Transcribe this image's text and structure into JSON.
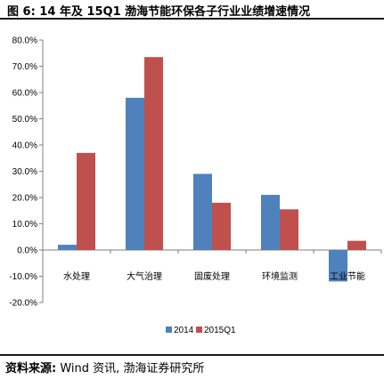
{
  "header": {
    "title": "图 6:  14 年及 15Q1 渤海节能环保各子行业业绩增速情况"
  },
  "footer": {
    "source_label": "资料来源:",
    "source_text": " Wind 资讯, 渤海证券研究所"
  },
  "colors": {
    "series_2014": "#4f81bd",
    "series_2015Q1": "#c0504d"
  },
  "chart_data": {
    "type": "bar",
    "title": "14 年及 15Q1 渤海节能环保各子行业业绩增速情况",
    "categories": [
      "水处理",
      "大气治理",
      "固废处理",
      "环境监测",
      "工业节能"
    ],
    "series": [
      {
        "name": "2014",
        "values": [
          2.0,
          58.0,
          29.0,
          21.0,
          -12.0
        ]
      },
      {
        "name": "2015Q1",
        "values": [
          37.0,
          73.5,
          18.0,
          15.5,
          3.5
        ]
      }
    ],
    "ylim": [
      -20,
      80
    ],
    "yticks": [
      "-20.0%",
      "-10.0%",
      "0.0%",
      "10.0%",
      "20.0%",
      "30.0%",
      "40.0%",
      "50.0%",
      "60.0%",
      "70.0%",
      "80.0%"
    ],
    "legend": "bottom",
    "grid": false
  }
}
